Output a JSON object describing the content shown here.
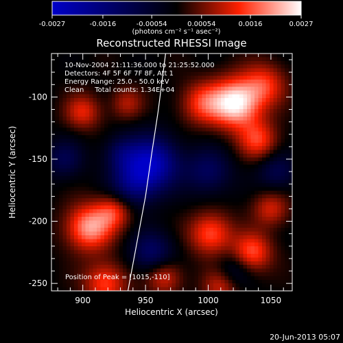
{
  "chart_data": {
    "type": "heatmap",
    "title": "Reconstructed RHESSI Image",
    "xlabel": "Heliocentric X (arcsec)",
    "ylabel": "Heliocentric Y (arcsec)",
    "xlim": [
      875,
      1067
    ],
    "ylim": [
      -256,
      -65
    ],
    "x_ticks": [
      900,
      950,
      1000,
      1050
    ],
    "y_ticks": [
      -100,
      -150,
      -200,
      -250
    ],
    "colorbar": {
      "min": -0.0027,
      "max": 0.0027,
      "ticks": [
        "-0.0027",
        "-0.0016",
        "-0.00054",
        "0.00054",
        "0.0016",
        "0.0027"
      ],
      "unit_label": "(photons cm⁻² s⁻¹ asec⁻²)",
      "colors": [
        "#0000c8",
        "#000000",
        "#ff2000",
        "#ffffff"
      ]
    },
    "annotations": [
      "10-Nov-2004 21:11:36.000 to 21:25:52.000",
      "Detectors: 4F 5F 6F 7F 8F, Att 1",
      "Energy Range: 25.0 - 50.0 keV",
      "Clean     Total counts: 1.34E+04"
    ],
    "peak_label": "Position of Peak = [1015,-110]",
    "limb_curve": {
      "x": [
        936,
        943,
        950,
        955,
        960,
        966
      ],
      "y": [
        -256,
        -218,
        -180,
        -145,
        -112,
        -65
      ]
    },
    "sources": [
      {
        "x": 1022,
        "y": -105,
        "sigma": 14,
        "amplitude": 0.0027
      },
      {
        "x": 995,
        "y": -105,
        "sigma": 12,
        "amplitude": 0.0013
      },
      {
        "x": 1040,
        "y": -135,
        "sigma": 11,
        "amplitude": 0.0014
      },
      {
        "x": 1002,
        "y": -210,
        "sigma": 12,
        "amplitude": 0.0016
      },
      {
        "x": 1035,
        "y": -225,
        "sigma": 11,
        "amplitude": 0.0016
      },
      {
        "x": 1050,
        "y": -190,
        "sigma": 10,
        "amplitude": 0.0011
      },
      {
        "x": 905,
        "y": -205,
        "sigma": 13,
        "amplitude": 0.0021
      },
      {
        "x": 925,
        "y": -192,
        "sigma": 10,
        "amplitude": 0.0013
      },
      {
        "x": 900,
        "y": -112,
        "sigma": 10,
        "amplitude": 0.0012
      },
      {
        "x": 935,
        "y": -105,
        "sigma": 9,
        "amplitude": 0.0009
      },
      {
        "x": 918,
        "y": -250,
        "sigma": 12,
        "amplitude": 0.0015
      },
      {
        "x": 965,
        "y": -245,
        "sigma": 10,
        "amplitude": 0.0012
      },
      {
        "x": 1010,
        "y": -252,
        "sigma": 10,
        "amplitude": 0.0011
      },
      {
        "x": 1045,
        "y": -90,
        "sigma": 12,
        "amplitude": 0.0013
      },
      {
        "x": 955,
        "y": -153,
        "sigma": 15,
        "amplitude": -0.0024
      },
      {
        "x": 940,
        "y": -170,
        "sigma": 13,
        "amplitude": -0.0014
      },
      {
        "x": 1000,
        "y": -160,
        "sigma": 13,
        "amplitude": -0.0012
      },
      {
        "x": 955,
        "y": -225,
        "sigma": 12,
        "amplitude": -0.0013
      },
      {
        "x": 885,
        "y": -150,
        "sigma": 11,
        "amplitude": -0.001
      },
      {
        "x": 1055,
        "y": -160,
        "sigma": 11,
        "amplitude": -0.001
      },
      {
        "x": 930,
        "y": -145,
        "sigma": 10,
        "amplitude": -0.0009
      },
      {
        "x": 1020,
        "y": -240,
        "sigma": 10,
        "amplitude": -0.0008
      }
    ]
  },
  "footer": {
    "date": "20-Jun-2013 05:07"
  }
}
